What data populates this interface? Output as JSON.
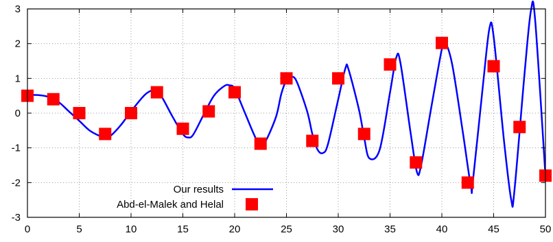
{
  "chart_data": {
    "type": "line",
    "title": "",
    "xlabel": "",
    "ylabel": "",
    "xlim": [
      0,
      50
    ],
    "ylim": [
      -3,
      3
    ],
    "xticks": [
      "0",
      "5",
      "10",
      "15",
      "20",
      "25",
      "30",
      "35",
      "40",
      "45",
      "50"
    ],
    "yticks": [
      "3",
      "2",
      "1",
      "0",
      "-1",
      "-2",
      "-3"
    ],
    "grid": true,
    "legend": "bottom-center",
    "series": [
      {
        "name": "Our results",
        "kind": "line",
        "color": "#0000ff",
        "x": [
          0,
          1,
          2,
          3,
          4,
          5,
          6,
          7,
          7.5,
          8,
          9,
          10,
          11,
          11.5,
          12,
          12.5,
          13,
          14,
          15,
          15.5,
          16,
          17,
          18,
          19,
          19.5,
          20,
          21,
          22,
          22.5,
          23,
          24,
          24.5,
          25,
          25.5,
          26,
          27,
          27.5,
          28,
          28.5,
          29,
          30,
          30.7,
          31,
          32,
          32.5,
          33,
          34,
          35,
          35.6,
          36,
          37,
          37.6,
          38,
          39,
          40,
          40.3,
          41,
          42,
          42.8,
          43,
          44,
          44.6,
          45,
          46,
          46.7,
          47,
          48,
          48.6,
          49,
          50
        ],
        "y": [
          0.52,
          0.52,
          0.47,
          0.32,
          0.05,
          -0.22,
          -0.5,
          -0.66,
          -0.7,
          -0.66,
          -0.35,
          0.05,
          0.42,
          0.57,
          0.65,
          0.6,
          0.45,
          -0.1,
          -0.6,
          -0.7,
          -0.62,
          -0.05,
          0.5,
          0.78,
          0.8,
          0.7,
          0.0,
          -0.7,
          -0.88,
          -0.8,
          -0.1,
          0.55,
          0.95,
          1.05,
          0.9,
          0.05,
          -0.6,
          -1.05,
          -1.15,
          -0.9,
          0.4,
          1.3,
          1.25,
          0.1,
          -0.7,
          -1.3,
          -1.05,
          0.6,
          1.6,
          1.45,
          -0.6,
          -1.7,
          -1.5,
          0.2,
          1.85,
          2.05,
          1.4,
          -0.5,
          -2.1,
          -1.95,
          0.9,
          2.45,
          2.2,
          -0.8,
          -2.5,
          -2.25,
          1.2,
          2.95,
          2.7,
          -1.8
        ]
      },
      {
        "name": "Abd-el-Malek and Helal",
        "kind": "scatter",
        "marker": "square",
        "color": "#ff0000",
        "x": [
          0,
          2.5,
          5,
          7.5,
          10,
          12.5,
          15,
          17.5,
          20,
          22.5,
          25,
          27.5,
          30,
          32.5,
          35,
          37.5,
          40,
          42.5,
          45,
          47.5,
          50
        ],
        "y": [
          0.5,
          0.4,
          0.0,
          -0.6,
          0.0,
          0.6,
          -0.45,
          0.05,
          0.6,
          -0.88,
          1.0,
          -0.8,
          1.0,
          -0.6,
          1.4,
          -1.42,
          2.02,
          -2.0,
          1.35,
          -0.4,
          -1.8
        ]
      }
    ]
  }
}
